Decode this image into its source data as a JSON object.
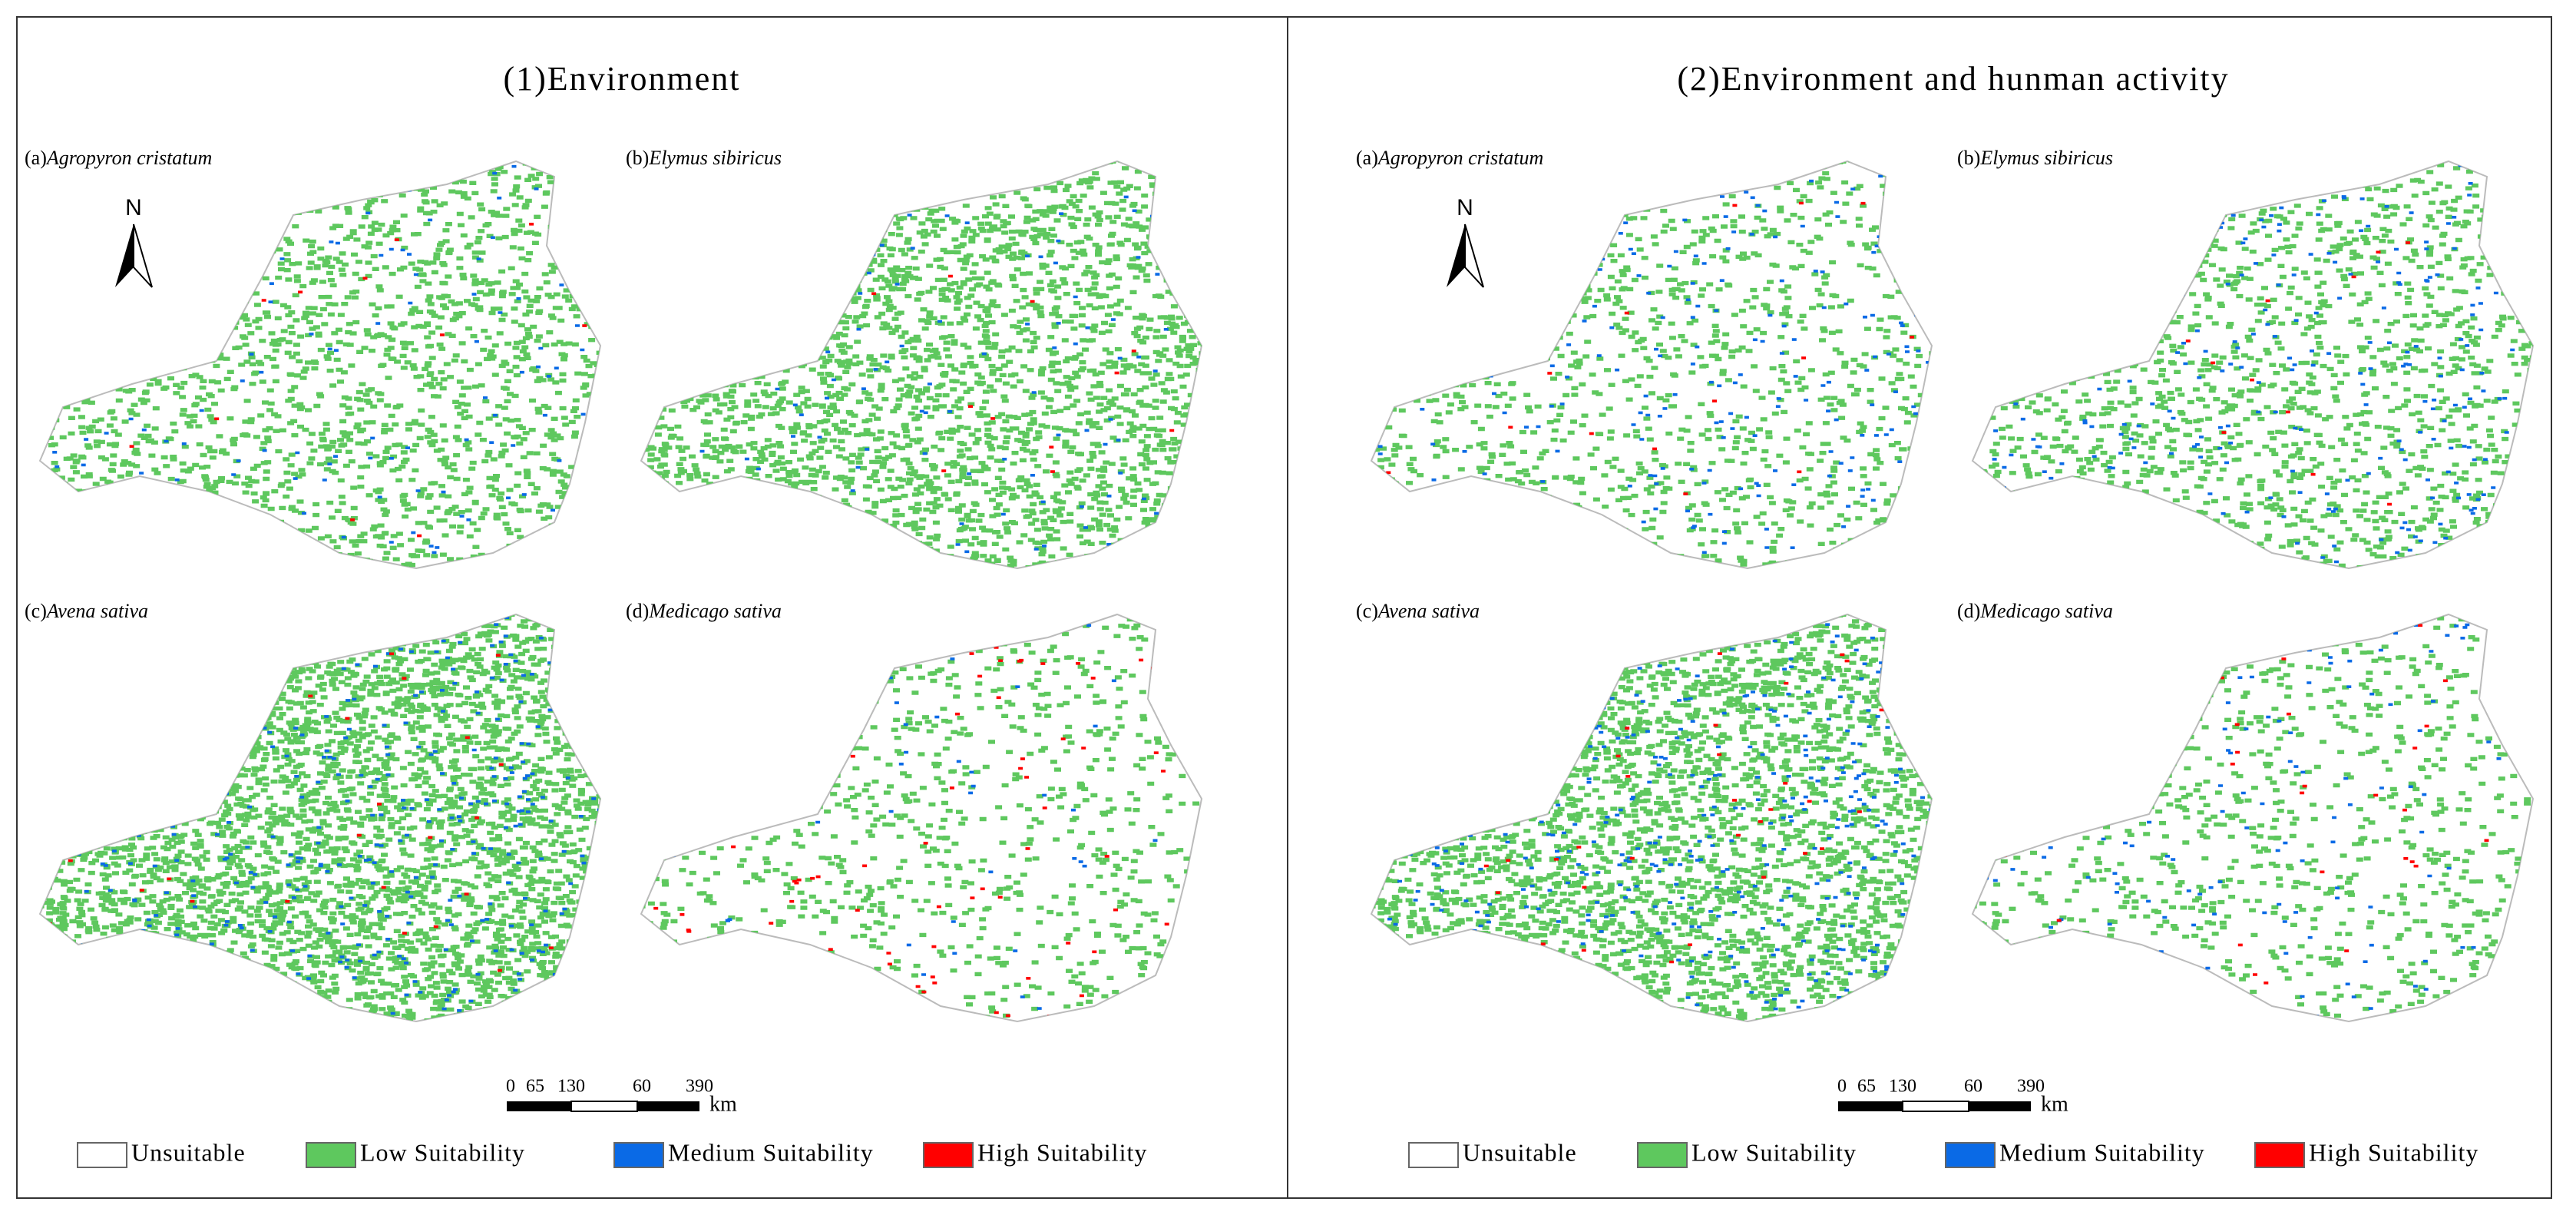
{
  "panels": [
    {
      "title": "(1)Environment",
      "maps": [
        {
          "letter": "(a)",
          "species": "Agropyron cristatum"
        },
        {
          "letter": "(b)",
          "species": "Elymus sibiricus"
        },
        {
          "letter": "(c)",
          "species": "Avena sativa"
        },
        {
          "letter": "(d)",
          "species": "Medicago sativa"
        }
      ],
      "north": "N",
      "scale_bar": {
        "labels": [
          "0",
          "65",
          "130",
          "60",
          "390"
        ],
        "unit": "km"
      },
      "legend": [
        {
          "label": "Unsuitable",
          "color": "#ffffff"
        },
        {
          "label": "Low Suitability",
          "color": "#5ec85e"
        },
        {
          "label": "Medium Suitability",
          "color": "#0a6ae6"
        },
        {
          "label": "High Suitability",
          "color": "#ff0000"
        }
      ]
    },
    {
      "title": "(2)Environment and hunman activity",
      "maps": [
        {
          "letter": "(a)",
          "species": "Agropyron cristatum"
        },
        {
          "letter": "(b)",
          "species": "Elymus sibiricus"
        },
        {
          "letter": "(c)",
          "species": "Avena sativa"
        },
        {
          "letter": "(d)",
          "species": "Medicago sativa"
        }
      ],
      "north": "N",
      "scale_bar": {
        "labels": [
          "0",
          "65",
          "130",
          "60",
          "390"
        ],
        "unit": "km"
      },
      "legend": [
        {
          "label": "Unsuitable",
          "color": "#ffffff"
        },
        {
          "label": "Low Suitability",
          "color": "#5ec85e"
        },
        {
          "label": "Medium Suitability",
          "color": "#0a6ae6"
        },
        {
          "label": "High Suitability",
          "color": "#ff0000"
        }
      ]
    }
  ]
}
